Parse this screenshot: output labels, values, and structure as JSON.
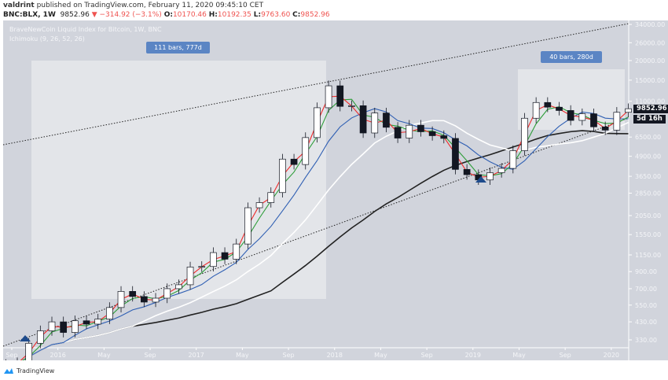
{
  "header": {
    "author": "valdrint",
    "published": "published on TradingView.com, February 11, 2020 09:45:10 CET",
    "symbol": "BNC:BLX, 1W",
    "last": "9852.96",
    "change": "▼ −314.92 (−3.1%)",
    "o_label": "O:",
    "o": "10170.46",
    "h_label": "H:",
    "h": "10192.35",
    "l_label": "L:",
    "l": "9763.60",
    "c_label": "C:",
    "c": "9852.96"
  },
  "legend": {
    "title": "BraveNewCoin Liquid Index for Bitcoin, 1W, BNC",
    "indicator": "Ichimoku (9, 26, 52, 26)"
  },
  "annotations": {
    "range1": "111 bars, 777d",
    "range2": "40 bars, 280d"
  },
  "price_label": "9852.96",
  "countdown": "5d 16h",
  "footer": {
    "brand": "TradingView"
  },
  "colors": {
    "background": "#d1d4dc",
    "up": "#ffffff",
    "down": "#131722",
    "red_line": "#ef2a2a",
    "green_line": "#2e9e3a",
    "blue_line": "#2f5fb3",
    "white_line": "#ffffff",
    "black_line": "#222222",
    "marker": "#1e4b8c"
  },
  "chart_data": {
    "type": "candlestick",
    "y_scale": "log",
    "ylim": [
      300,
      38000
    ],
    "y_ticks": [
      34000,
      26000,
      20000,
      15000,
      11000,
      6500,
      4900,
      3650,
      2850,
      2050,
      1550,
      1150,
      900,
      700,
      550,
      430,
      330
    ],
    "y_tick_labels": [
      "34000.00",
      "26000.00",
      "20000.00",
      "15000.00",
      "11000.00",
      "6500.00",
      "4900.00",
      "3650.00",
      "2850.00",
      "2050.00",
      "1550.00",
      "1150.00",
      "900.00",
      "700.00",
      "550.00",
      "430.00",
      "330.00"
    ],
    "x_tick_labels": [
      "Sep",
      "2016",
      "May",
      "Sep",
      "2017",
      "May",
      "Sep",
      "2018",
      "May",
      "Sep",
      "2019",
      "May",
      "Sep",
      "2020"
    ],
    "grid": false,
    "months": [
      "2015-08",
      "2015-09",
      "2015-10",
      "2015-11",
      "2015-12",
      "2016-01",
      "2016-02",
      "2016-03",
      "2016-04",
      "2016-05",
      "2016-06",
      "2016-07",
      "2016-08",
      "2016-09",
      "2016-10",
      "2016-11",
      "2016-12",
      "2017-01",
      "2017-02",
      "2017-03",
      "2017-04",
      "2017-05",
      "2017-06",
      "2017-07",
      "2017-08",
      "2017-09",
      "2017-10",
      "2017-11",
      "2017-12",
      "2018-01",
      "2018-02",
      "2018-03",
      "2018-04",
      "2018-05",
      "2018-06",
      "2018-07",
      "2018-08",
      "2018-09",
      "2018-10",
      "2018-11",
      "2018-12",
      "2019-01",
      "2019-02",
      "2019-03",
      "2019-04",
      "2019-05",
      "2019-06",
      "2019-07",
      "2019-08",
      "2019-09",
      "2019-10",
      "2019-11",
      "2019-12",
      "2020-01",
      "2020-02"
    ],
    "close": [
      230,
      236,
      314,
      377,
      430,
      368,
      437,
      416,
      448,
      531,
      673,
      624,
      575,
      609,
      700,
      742,
      963,
      970,
      1190,
      1080,
      1350,
      2300,
      2480,
      2875,
      4700,
      4340,
      6450,
      10000,
      13800,
      10200,
      10300,
      6900,
      9250,
      7500,
      6400,
      7730,
      7030,
      6630,
      6370,
      4040,
      3740,
      3460,
      3850,
      4100,
      5320,
      8570,
      10800,
      10080,
      9600,
      8300,
      9150,
      7550,
      7200,
      9350,
      9853
    ]
  }
}
